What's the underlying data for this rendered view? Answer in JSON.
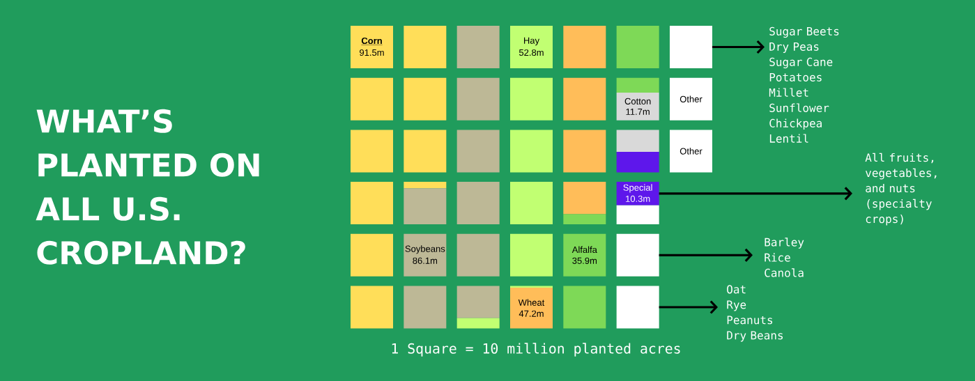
{
  "chart_data": {
    "type": "other",
    "title": "WHAT’S PLANTED ON ALL U.S. CROPLAND?",
    "categories": [
      "Corn",
      "Soybeans",
      "Hay",
      "Wheat",
      "Alfalfa",
      "Cotton",
      "Special",
      "Other"
    ],
    "values": [
      91.5,
      86.1,
      52.8,
      47.2,
      35.9,
      11.7,
      10.3,
      null
    ],
    "value_labels": [
      "91.5m",
      "86.1m",
      "52.8m",
      "47.2m",
      "35.9m",
      "11.7m",
      "10.3m",
      null
    ],
    "colors": [
      "#ffde59",
      "#bdb896",
      "#c1ff72",
      "#ffbd59",
      "#7ed957",
      "#d9d9d9",
      "#5e17eb",
      "#ffffff"
    ],
    "annotations": [
      "Other",
      "Sugar Beets\nDry Peas\nSugar Cane\nPotatoes\nMillet\nSunflower\nChickpea\nLentil",
      "All fruits, vegetables, and nuts (specialty crops)",
      "Barley\nRice\nCanola",
      "Oat\nRye\nPeanuts\nDry Beans",
      "1 Square = 10 million planted acres"
    ]
  }
}
